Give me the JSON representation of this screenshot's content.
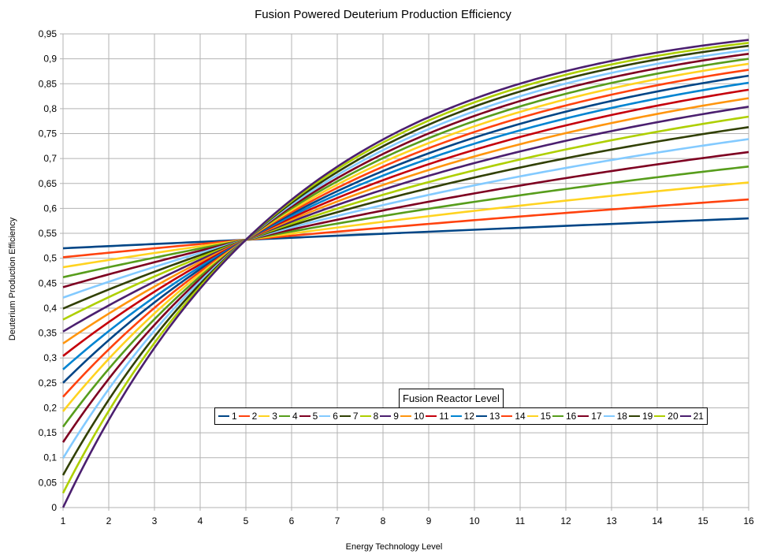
{
  "chart_data": {
    "type": "line",
    "title": "Fusion Powered Deuterium Production Efficiency",
    "xlabel": "Energy Technology Level",
    "ylabel": "Deuterium Production Efficiency",
    "xlim": [
      1,
      16
    ],
    "ylim": [
      0,
      0.95
    ],
    "x_ticks": [
      "1",
      "2",
      "3",
      "4",
      "5",
      "6",
      "7",
      "8",
      "9",
      "10",
      "11",
      "12",
      "13",
      "14",
      "15",
      "16"
    ],
    "y_ticks": [
      "0",
      "0,05",
      "0,1",
      "0,15",
      "0,2",
      "0,25",
      "0,3",
      "0,35",
      "0,4",
      "0,45",
      "0,5",
      "0,55",
      "0,6",
      "0,65",
      "0,7",
      "0,75",
      "0,8",
      "0,85",
      "0,9",
      "0,95"
    ],
    "grid": true,
    "legend_title": "Fusion Reactor Level",
    "legend_position": "lower-center",
    "x": [
      1,
      16
    ],
    "series": [
      {
        "name": "1",
        "color": "#004586",
        "values": [
          0.52,
          0.58
        ]
      },
      {
        "name": "2",
        "color": "#ff420e",
        "values": [
          0.502,
          0.618
        ]
      },
      {
        "name": "3",
        "color": "#ffd320",
        "values": [
          0.482,
          0.652
        ]
      },
      {
        "name": "4",
        "color": "#579d1c",
        "values": [
          0.462,
          0.684
        ]
      },
      {
        "name": "5",
        "color": "#7e0021",
        "values": [
          0.442,
          0.713
        ]
      },
      {
        "name": "6",
        "color": "#83caff",
        "values": [
          0.421,
          0.739
        ]
      },
      {
        "name": "7",
        "color": "#314004",
        "values": [
          0.399,
          0.763
        ]
      },
      {
        "name": "8",
        "color": "#aecf00",
        "values": [
          0.377,
          0.784
        ]
      },
      {
        "name": "9",
        "color": "#4b1f6f",
        "values": [
          0.353,
          0.804
        ]
      },
      {
        "name": "10",
        "color": "#ff950e",
        "values": [
          0.329,
          0.821
        ]
      },
      {
        "name": "11",
        "color": "#c5000b",
        "values": [
          0.304,
          0.838
        ]
      },
      {
        "name": "12",
        "color": "#0084d1",
        "values": [
          0.277,
          0.852
        ]
      },
      {
        "name": "13",
        "color": "#004586",
        "values": [
          0.25,
          0.866
        ]
      },
      {
        "name": "14",
        "color": "#ff420e",
        "values": [
          0.222,
          0.878
        ]
      },
      {
        "name": "15",
        "color": "#ffd320",
        "values": [
          0.193,
          0.89
        ]
      },
      {
        "name": "16",
        "color": "#579d1c",
        "values": [
          0.162,
          0.9
        ]
      },
      {
        "name": "17",
        "color": "#7e0021",
        "values": [
          0.131,
          0.91
        ]
      },
      {
        "name": "18",
        "color": "#83caff",
        "values": [
          0.099,
          0.918
        ]
      },
      {
        "name": "19",
        "color": "#314004",
        "values": [
          0.065,
          0.926
        ]
      },
      {
        "name": "20",
        "color": "#aecf00",
        "values": [
          0.029,
          0.932
        ]
      },
      {
        "name": "21",
        "color": "#4b1f6f",
        "values": [
          0.0,
          0.938
        ]
      }
    ],
    "intersection": {
      "x": 5,
      "y": 0.537
    }
  }
}
